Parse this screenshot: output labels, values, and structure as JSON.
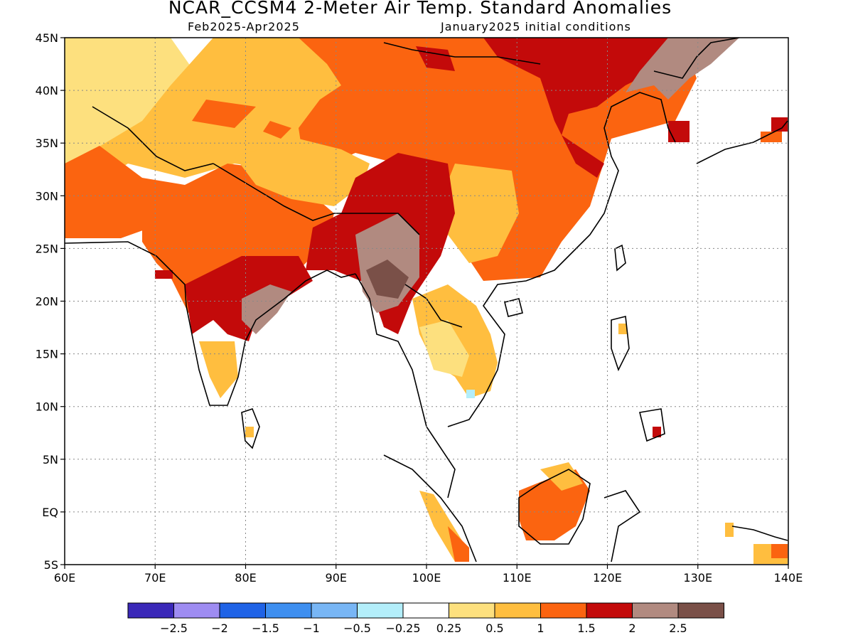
{
  "title": "NCAR_CCSM4 2-Meter Air Temp. Standard Anomalies",
  "subtitle_left": "Feb2025-Apr2025",
  "subtitle_right": "January2025 initial conditions",
  "map": {
    "lon_range": [
      60,
      140
    ],
    "lat_range": [
      -5,
      45
    ],
    "lat_ticks": [
      "45N",
      "40N",
      "35N",
      "30N",
      "25N",
      "20N",
      "15N",
      "10N",
      "5N",
      "EQ",
      "5S"
    ],
    "lon_ticks": [
      "60E",
      "70E",
      "80E",
      "90E",
      "100E",
      "110E",
      "120E",
      "130E",
      "140E"
    ],
    "grid": true
  },
  "colorbar": {
    "colors": [
      "#3a28b8",
      "#9e8cf2",
      "#1f63e6",
      "#3e8ff0",
      "#78b6f5",
      "#b3eefa",
      "#ffffff",
      "#fde07e",
      "#ffbe3f",
      "#fb6410",
      "#c30a0a",
      "#b18a80",
      "#7a5048"
    ],
    "labels": [
      "-2.5",
      "-2",
      "-1.5",
      "-1",
      "-0.5",
      "-0.25",
      "0.25",
      "0.5",
      "1",
      "1.5",
      "2",
      "2.5"
    ]
  }
}
